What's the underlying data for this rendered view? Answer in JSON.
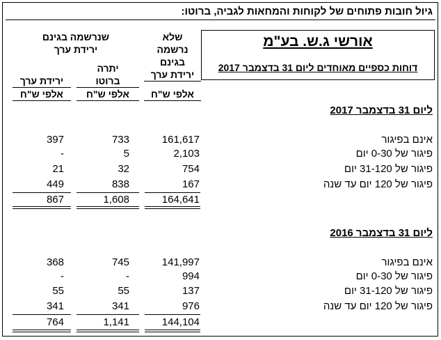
{
  "title": "גיול חובות פתוחים של לקוחות והמחאות לגביה, ברוטו:",
  "company": {
    "name": "אורשי ג.ש. בע\"מ",
    "subtitle": "דוחות כספיים מאוחדים ליום 31 בדצמבר 2017"
  },
  "headers": {
    "group_recorded": "שנרשמה בגינם",
    "group_recorded_line2": "ירידת ערך",
    "col_not_recorded": [
      "שלא",
      "נרשמה",
      "בגינם",
      "ירידת ערך"
    ],
    "col_gross_balance": [
      "יתרה",
      "ברוטו"
    ],
    "col_impairment": [
      "ירידת ערך"
    ],
    "unit": "אלפי ש\"ח"
  },
  "sections": [
    {
      "heading": "ליום 31 בדצמבר 2017",
      "rows": [
        {
          "label": "אינם בפיגור",
          "not_recorded": "161,617",
          "gross": "733",
          "impairment": "397"
        },
        {
          "label": "פיגור של 0-30 יום",
          "not_recorded": "2,103",
          "gross": "5",
          "impairment": "-"
        },
        {
          "label": "פיגור של 31-120 יום",
          "not_recorded": "754",
          "gross": "32",
          "impairment": "21"
        },
        {
          "label": "פיגור של 120 יום עד שנה",
          "not_recorded": "167",
          "gross": "838",
          "impairment": "449"
        }
      ],
      "total": {
        "not_recorded": "164,641",
        "gross": "1,608",
        "impairment": "867"
      }
    },
    {
      "heading": "ליום 31 בדצמבר 2016",
      "rows": [
        {
          "label": "אינם בפיגור",
          "not_recorded": "141,997",
          "gross": "745",
          "impairment": "368"
        },
        {
          "label": "פיגור של 0-30 יום",
          "not_recorded": "994",
          "gross": "-",
          "impairment": "-"
        },
        {
          "label": "פיגור של 31-120 יום",
          "not_recorded": "137",
          "gross": "55",
          "impairment": "55"
        },
        {
          "label": "פיגור של 120 יום עד שנה",
          "not_recorded": "976",
          "gross": "341",
          "impairment": "341"
        }
      ],
      "total": {
        "not_recorded": "144,104",
        "gross": "1,141",
        "impairment": "764"
      }
    }
  ]
}
